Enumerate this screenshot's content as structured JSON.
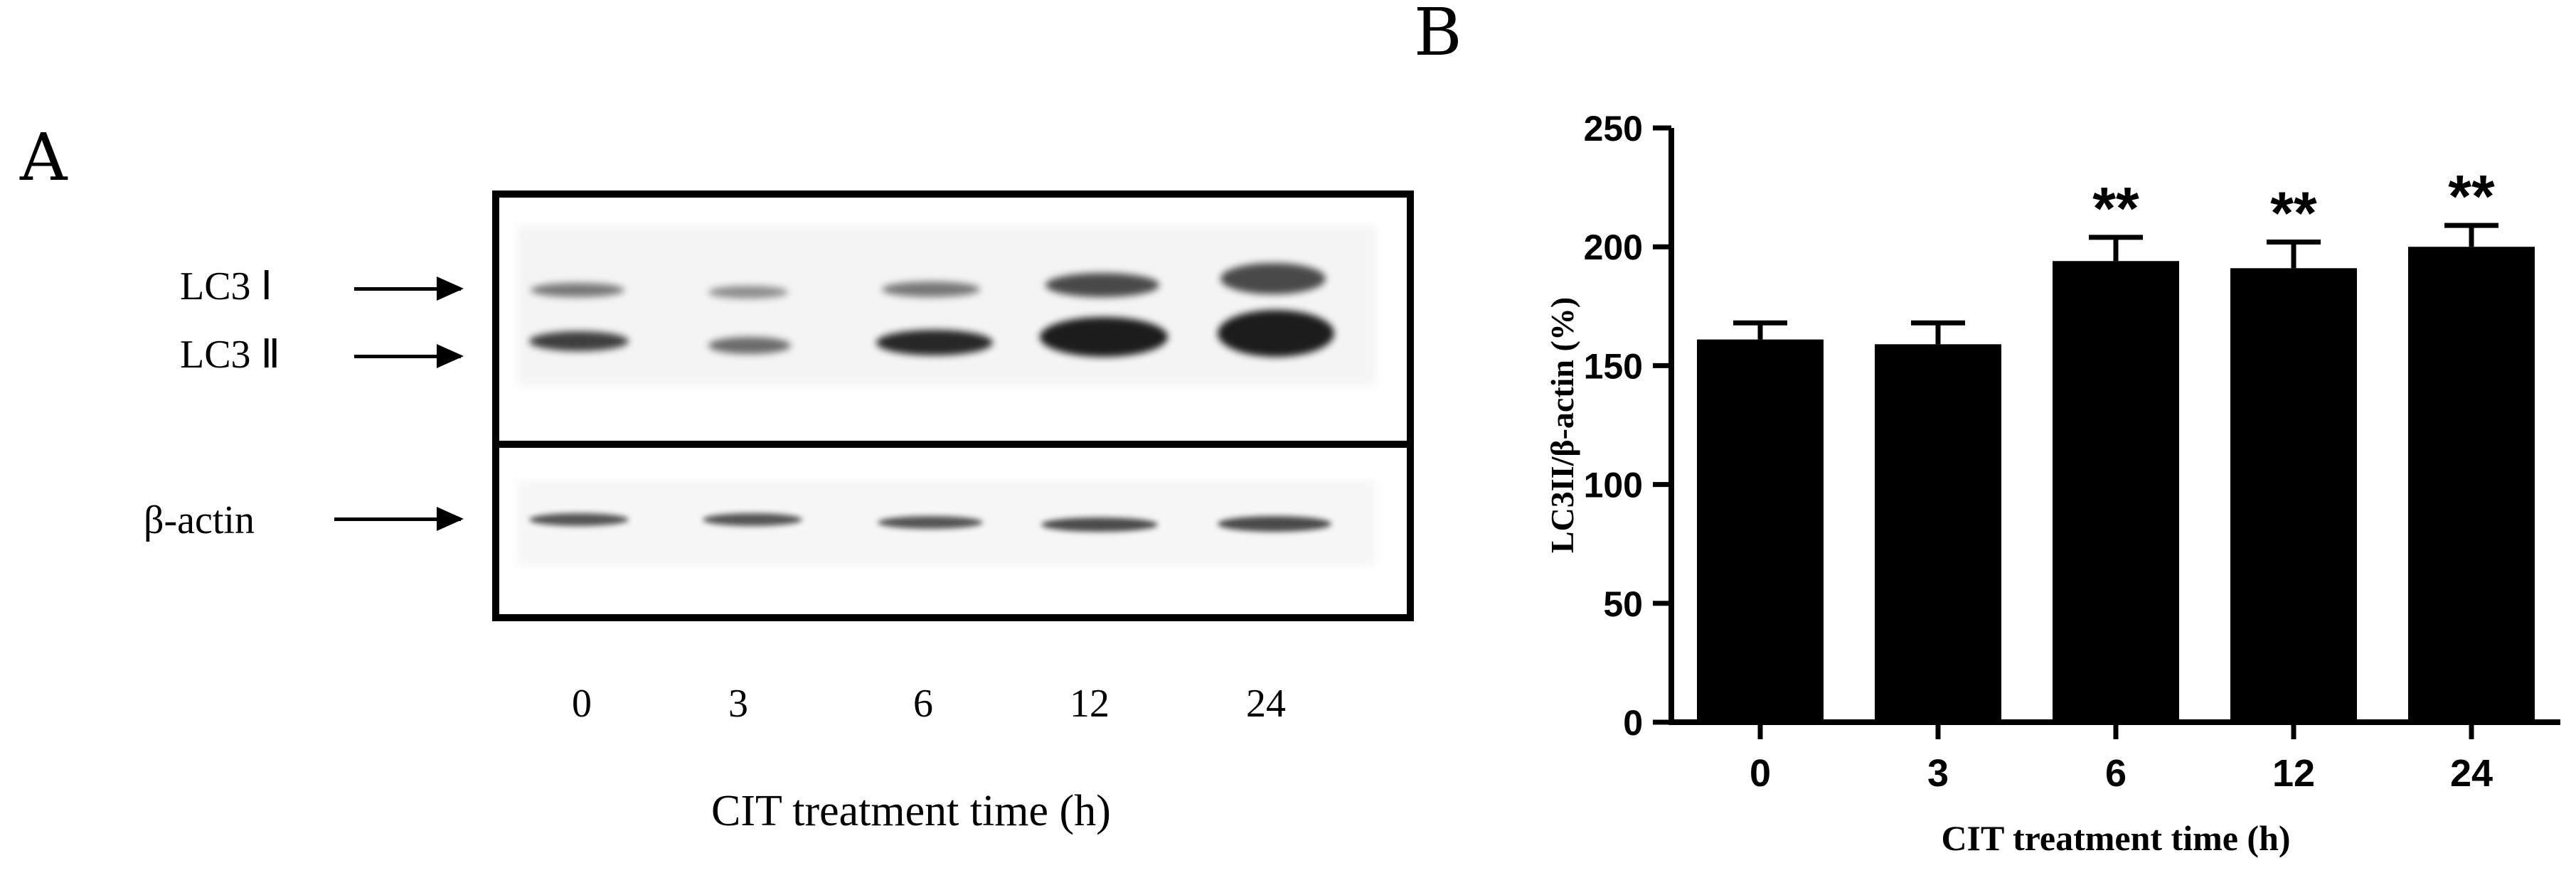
{
  "panel_a": {
    "letter": "A",
    "bands": [
      "LC3 Ⅰ",
      "LC3 Ⅱ",
      "β-actin"
    ],
    "lanes": [
      "0",
      "3",
      "6",
      "12",
      "24"
    ],
    "xlabel": "CIT treatment time (h)"
  },
  "panel_b": {
    "letter": "B"
  },
  "chart_data": {
    "type": "bar",
    "categories": [
      "0",
      "3",
      "6",
      "12",
      "24"
    ],
    "values": [
      161,
      159,
      194,
      191,
      200
    ],
    "errors": [
      7,
      9,
      10,
      11,
      9
    ],
    "annotations": [
      "",
      "",
      "**",
      "**",
      "**"
    ],
    "xlabel": "CIT treatment time (h)",
    "ylabel": "LC3II/β-actin (%)",
    "ylim": [
      0,
      250
    ],
    "yticks": [
      0,
      50,
      100,
      150,
      200,
      250
    ],
    "bar_color": "#000000",
    "grid": false
  }
}
